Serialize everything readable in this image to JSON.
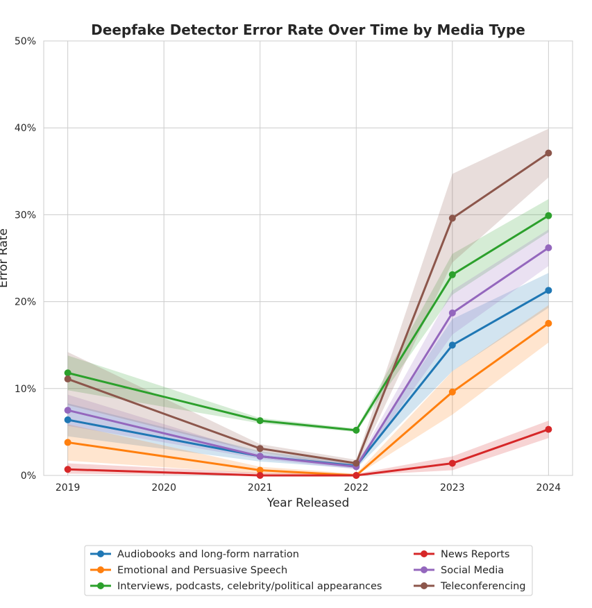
{
  "chart_data": {
    "type": "line",
    "title": "Deepfake Detector Error Rate Over Time by Media Type",
    "xlabel": "Year Released",
    "ylabel": "Error Rate",
    "x": [
      2019,
      2020,
      2021,
      2022,
      2023,
      2024
    ],
    "x_tick_labels": [
      "2019",
      "2020",
      "2021",
      "2022",
      "2023",
      "2024"
    ],
    "xlim": [
      2018.75,
      2024.25
    ],
    "ylim": [
      0,
      50
    ],
    "y_ticks": [
      0,
      10,
      20,
      30,
      40,
      50
    ],
    "y_tick_labels": [
      "0%",
      "10%",
      "20%",
      "30%",
      "40%",
      "50%"
    ],
    "grid": true,
    "legend_position": "bottom-center, outside plot",
    "series": [
      {
        "name": "Audiobooks and long-form narration",
        "color": "#1f77b4",
        "points": [
          [
            2019,
            6.4
          ],
          [
            2021,
            2.2
          ],
          [
            2022,
            1.1
          ],
          [
            2023,
            15.0
          ],
          [
            2024,
            21.3
          ]
        ],
        "ci_upper": [
          [
            2019,
            8.3
          ],
          [
            2021,
            2.8
          ],
          [
            2022,
            1.4
          ],
          [
            2023,
            18.0
          ],
          [
            2024,
            23.3
          ]
        ],
        "ci_lower": [
          [
            2019,
            4.5
          ],
          [
            2021,
            1.6
          ],
          [
            2022,
            0.8
          ],
          [
            2023,
            12.0
          ],
          [
            2024,
            19.3
          ]
        ]
      },
      {
        "name": "Emotional and Persuasive Speech",
        "color": "#ff7f0e",
        "points": [
          [
            2019,
            3.8
          ],
          [
            2021,
            0.6
          ],
          [
            2022,
            0.0
          ],
          [
            2023,
            9.6
          ],
          [
            2024,
            17.5
          ]
        ],
        "ci_upper": [
          [
            2019,
            5.9
          ],
          [
            2021,
            1.0
          ],
          [
            2022,
            0.2
          ],
          [
            2023,
            12.0
          ],
          [
            2024,
            19.6
          ]
        ],
        "ci_lower": [
          [
            2019,
            1.7
          ],
          [
            2021,
            0.2
          ],
          [
            2022,
            0.0
          ],
          [
            2023,
            7.0
          ],
          [
            2024,
            15.3
          ]
        ]
      },
      {
        "name": "Interviews, podcasts, celebrity/political appearances",
        "color": "#2ca02c",
        "points": [
          [
            2019,
            11.8
          ],
          [
            2021,
            6.3
          ],
          [
            2022,
            5.2
          ],
          [
            2023,
            23.1
          ],
          [
            2024,
            29.9
          ]
        ],
        "ci_upper": [
          [
            2019,
            13.8
          ],
          [
            2021,
            6.6
          ],
          [
            2022,
            5.4
          ],
          [
            2023,
            25.5
          ],
          [
            2024,
            31.8
          ]
        ],
        "ci_lower": [
          [
            2019,
            9.8
          ],
          [
            2021,
            6.0
          ],
          [
            2022,
            5.0
          ],
          [
            2023,
            20.8
          ],
          [
            2024,
            28.0
          ]
        ]
      },
      {
        "name": "News Reports",
        "color": "#d62728",
        "points": [
          [
            2019,
            0.7
          ],
          [
            2021,
            0.0
          ],
          [
            2022,
            0.0
          ],
          [
            2023,
            1.4
          ],
          [
            2024,
            5.3
          ]
        ],
        "ci_upper": [
          [
            2019,
            1.4
          ],
          [
            2021,
            0.3
          ],
          [
            2022,
            0.2
          ],
          [
            2023,
            2.2
          ],
          [
            2024,
            6.3
          ]
        ],
        "ci_lower": [
          [
            2019,
            0.2
          ],
          [
            2021,
            0.0
          ],
          [
            2022,
            0.0
          ],
          [
            2023,
            0.6
          ],
          [
            2024,
            4.3
          ]
        ]
      },
      {
        "name": "Social Media",
        "color": "#9467bd",
        "points": [
          [
            2019,
            7.5
          ],
          [
            2021,
            2.2
          ],
          [
            2022,
            1.0
          ],
          [
            2023,
            18.7
          ],
          [
            2024,
            26.2
          ]
        ],
        "ci_upper": [
          [
            2019,
            9.3
          ],
          [
            2021,
            2.5
          ],
          [
            2022,
            1.3
          ],
          [
            2023,
            21.3
          ],
          [
            2024,
            28.3
          ]
        ],
        "ci_lower": [
          [
            2019,
            5.7
          ],
          [
            2021,
            1.9
          ],
          [
            2022,
            0.7
          ],
          [
            2023,
            16.2
          ],
          [
            2024,
            24.1
          ]
        ]
      },
      {
        "name": "Teleconferencing",
        "color": "#8c564b",
        "points": [
          [
            2019,
            11.1
          ],
          [
            2021,
            3.1
          ],
          [
            2022,
            1.4
          ],
          [
            2023,
            29.6
          ],
          [
            2024,
            37.1
          ]
        ],
        "ci_upper": [
          [
            2019,
            14.2
          ],
          [
            2021,
            3.6
          ],
          [
            2022,
            1.8
          ],
          [
            2023,
            34.7
          ],
          [
            2024,
            39.9
          ]
        ],
        "ci_lower": [
          [
            2019,
            8.1
          ],
          [
            2021,
            2.6
          ],
          [
            2022,
            1.0
          ],
          [
            2023,
            24.5
          ],
          [
            2024,
            34.3
          ]
        ]
      }
    ],
    "legend_columns": [
      [
        "Audiobooks and long-form narration",
        "Emotional and Persuasive Speech",
        "Interviews, podcasts, celebrity/political appearances"
      ],
      [
        "News Reports",
        "Social Media",
        "Teleconferencing"
      ]
    ]
  }
}
